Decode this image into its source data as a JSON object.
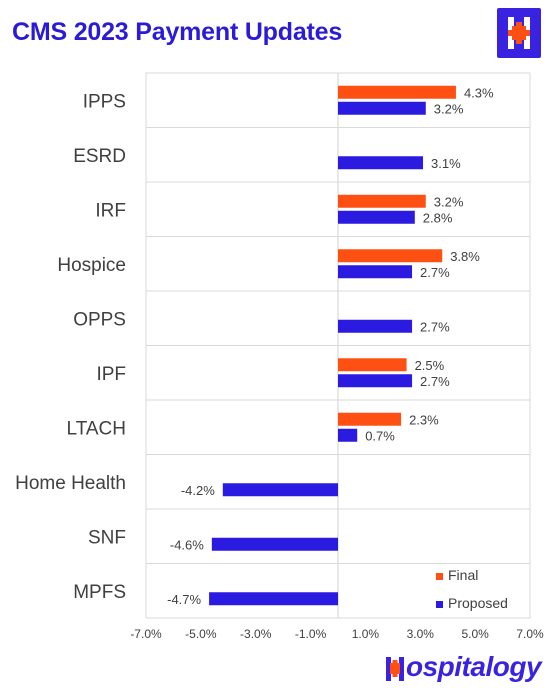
{
  "page": {
    "title": "CMS 2023 Payment Updates"
  },
  "logo": {
    "brand_text": "ospitalogy",
    "badge_icon": "hospitalogy-h-plus-icon",
    "brand_icon": "hospitalogy-h-plus-icon"
  },
  "colors": {
    "final": "#FF5014",
    "proposed": "#2B1BE0",
    "title": "#2B1BD6",
    "grid": "#D9D9D9",
    "text": "#404040"
  },
  "chart_data": {
    "type": "bar",
    "orientation": "horizontal",
    "categories": [
      "IPPS",
      "ESRD",
      "IRF",
      "Hospice",
      "OPPS",
      "IPF",
      "LTACH",
      "Home Health",
      "SNF",
      "MPFS"
    ],
    "series": [
      {
        "name": "Final",
        "values": [
          4.3,
          null,
          3.2,
          3.8,
          null,
          2.5,
          2.3,
          null,
          null,
          null
        ]
      },
      {
        "name": "Proposed",
        "values": [
          3.2,
          3.1,
          2.8,
          2.7,
          2.7,
          2.7,
          0.7,
          -4.2,
          -4.6,
          -4.7
        ]
      }
    ],
    "xlim": [
      -7.0,
      7.0
    ],
    "xticks": [
      -7.0,
      -5.0,
      -3.0,
      -1.0,
      1.0,
      3.0,
      5.0,
      7.0
    ],
    "xtick_labels": [
      "-7.0%",
      "-5.0%",
      "-3.0%",
      "-1.0%",
      "1.0%",
      "3.0%",
      "5.0%",
      "7.0%"
    ],
    "value_suffix": "%",
    "grid": "horizontal-separators",
    "legend_position": "bottom-right"
  }
}
